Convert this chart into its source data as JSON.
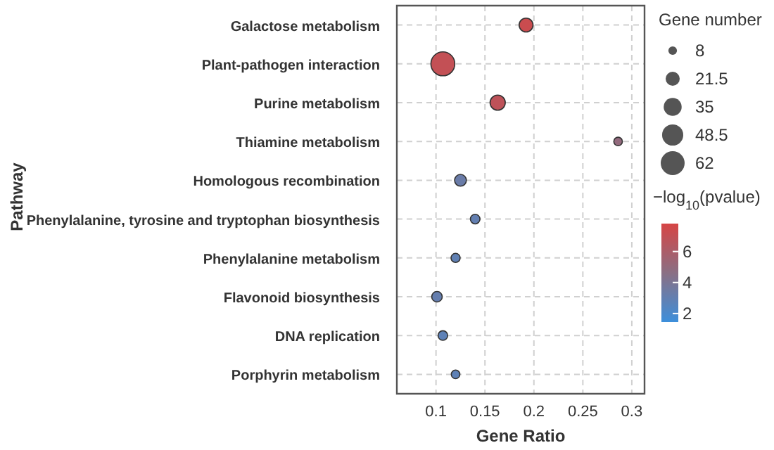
{
  "chart_data": {
    "type": "bubble",
    "xlabel": "Gene Ratio",
    "ylabel": "Pathway",
    "legend_title": "Gene number",
    "clabel": "−log$_{10}$(pvalue)",
    "categories": [
      "Galactose metabolism",
      "Plant-pathogen interaction",
      "Purine metabolism",
      "Thiamine metabolism",
      "Homologous recombination",
      "Phenylalanine, tyrosine and tryptophan biosynthesis",
      "Phenylalanine metabolism",
      "Flavonoid biosynthesis",
      "DNA replication",
      "Porphyrin metabolism"
    ],
    "values": [
      0.192,
      0.107,
      0.163,
      0.286,
      0.125,
      0.14,
      0.12,
      0.101,
      0.107,
      0.12
    ],
    "sizes": [
      21,
      62,
      25,
      8,
      15,
      10,
      9,
      12,
      10,
      8
    ],
    "size_legend": [
      8,
      21.5,
      35,
      48.5,
      62
    ],
    "cvalues": [
      7.3,
      7.0,
      6.8,
      5.0,
      3.3,
      3.0,
      2.9,
      3.1,
      2.8,
      2.8
    ],
    "clim": [
      1.45,
      7.8
    ],
    "cticks": [
      2,
      4,
      6
    ],
    "orientation": "horizontal",
    "xlim": [
      0.06,
      0.313
    ],
    "xticks": [
      0.1,
      0.15,
      0.2,
      0.25,
      0.3
    ],
    "grid": true,
    "marker": "circle"
  }
}
